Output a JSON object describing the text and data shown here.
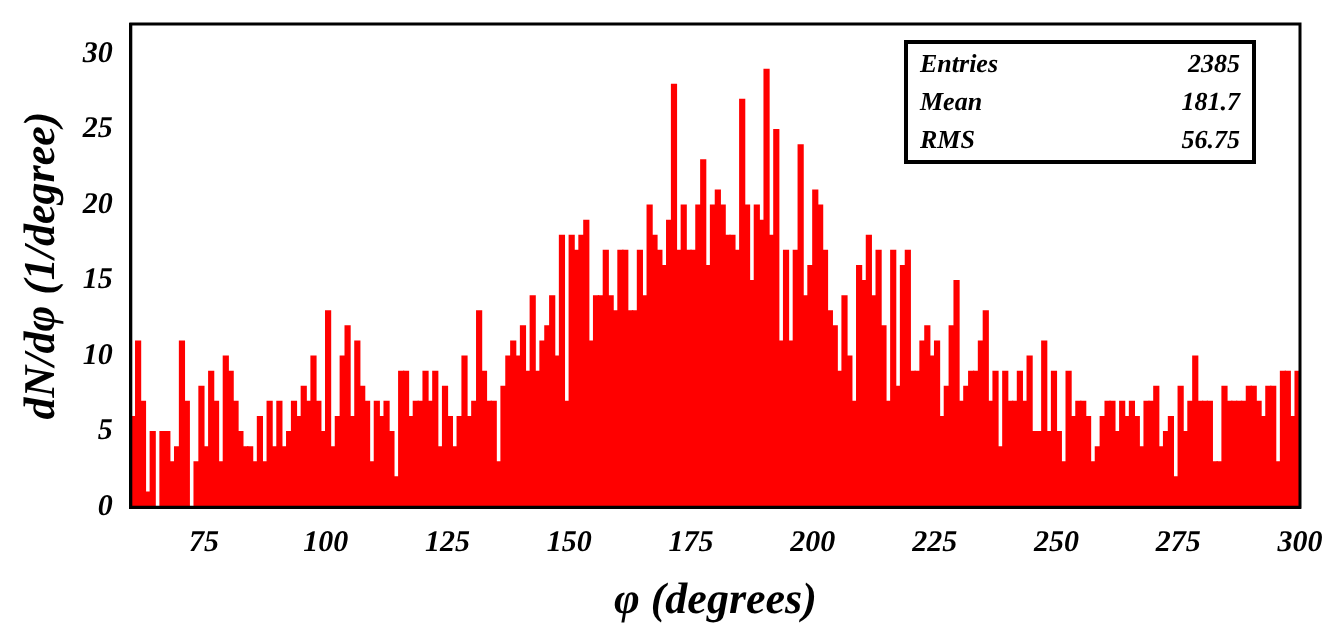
{
  "chart_data": {
    "type": "histogram",
    "xlabel": "φ (degrees)",
    "ylabel": "dN/dφ (1/degree)",
    "bins": [
      60,
      61,
      62,
      63,
      64,
      65,
      66,
      67,
      68,
      69,
      70,
      71,
      72,
      73,
      74,
      75,
      76,
      77,
      78,
      79,
      80,
      81,
      82,
      83,
      84,
      85,
      86,
      87,
      88,
      89,
      90,
      91,
      92,
      93,
      94,
      95,
      96,
      97,
      98,
      99,
      100,
      101,
      102,
      103,
      104,
      105,
      106,
      107,
      108,
      109,
      110,
      111,
      112,
      113,
      114,
      115,
      116,
      117,
      118,
      119,
      120,
      121,
      122,
      123,
      124,
      125,
      126,
      127,
      128,
      129,
      130,
      131,
      132,
      133,
      134,
      135,
      136,
      137,
      138,
      139,
      140,
      141,
      142,
      143,
      144,
      145,
      146,
      147,
      148,
      149,
      150,
      151,
      152,
      153,
      154,
      155,
      156,
      157,
      158,
      159,
      160,
      161,
      162,
      163,
      164,
      165,
      166,
      167,
      168,
      169,
      170,
      171,
      172,
      173,
      174,
      175,
      176,
      177,
      178,
      179,
      180,
      181,
      182,
      183,
      184,
      185,
      186,
      187,
      188,
      189,
      190,
      191,
      192,
      193,
      194,
      195,
      196,
      197,
      198,
      199,
      200,
      201,
      202,
      203,
      204,
      205,
      206,
      207,
      208,
      209,
      210,
      211,
      212,
      213,
      214,
      215,
      216,
      217,
      218,
      219,
      220,
      221,
      222,
      223,
      224,
      225,
      226,
      227,
      228,
      229,
      230,
      231,
      232,
      233,
      234,
      235,
      236,
      237,
      238,
      239,
      240,
      241,
      242,
      243,
      244,
      245,
      246,
      247,
      248,
      249,
      250,
      251,
      252,
      253,
      254,
      255,
      256,
      257,
      258,
      259,
      260,
      261,
      262,
      263,
      264,
      265,
      266,
      267,
      268,
      269,
      270,
      271,
      272,
      273,
      274,
      275,
      276,
      277,
      278,
      279,
      280,
      281,
      282,
      283,
      284,
      285,
      286,
      287,
      288,
      289,
      290,
      291,
      292,
      293,
      294,
      295,
      296,
      297,
      298,
      299,
      300
    ],
    "values": [
      6,
      11,
      7,
      1,
      5,
      0,
      5,
      5,
      3,
      4,
      11,
      7,
      0,
      3,
      8,
      4,
      9,
      7,
      3,
      10,
      9,
      7,
      5,
      4,
      4,
      3,
      6,
      3,
      7,
      4,
      7,
      4,
      5,
      7,
      6,
      8,
      7,
      10,
      7,
      5,
      13,
      4,
      6,
      10,
      12,
      6,
      11,
      8,
      7,
      3,
      7,
      6,
      7,
      5,
      2,
      9,
      9,
      6,
      7,
      7,
      9,
      7,
      9,
      4,
      8,
      6,
      4,
      6,
      10,
      6,
      7,
      13,
      9,
      7,
      7,
      3,
      8,
      10,
      11,
      10,
      12,
      9,
      14,
      9,
      11,
      12,
      14,
      10,
      18,
      7,
      18,
      17,
      18,
      19,
      11,
      14,
      14,
      17,
      14,
      13,
      17,
      17,
      13,
      13,
      17,
      14,
      20,
      18,
      17,
      16,
      19,
      28,
      17,
      20,
      17,
      17,
      20,
      23,
      16,
      20,
      21,
      20,
      18,
      18,
      17,
      27,
      20,
      15,
      20,
      19,
      29,
      18,
      25,
      11,
      17,
      11,
      17,
      24,
      14,
      16,
      21,
      20,
      17,
      13,
      12,
      9,
      14,
      10,
      7,
      16,
      15,
      18,
      14,
      17,
      12,
      7,
      17,
      8,
      16,
      17,
      9,
      9,
      11,
      12,
      10,
      11,
      6,
      8,
      12,
      15,
      7,
      8,
      9,
      9,
      11,
      13,
      7,
      9,
      4,
      9,
      7,
      7,
      9,
      7,
      10,
      5,
      5,
      11,
      5,
      9,
      5,
      3,
      9,
      6,
      7,
      7,
      6,
      3,
      4,
      6,
      7,
      7,
      5,
      7,
      6,
      7,
      6,
      4,
      7,
      7,
      8,
      4,
      5,
      6,
      2,
      8,
      5,
      7,
      10,
      7,
      7,
      7,
      3,
      3,
      8,
      7,
      7,
      7,
      7,
      8,
      8,
      7,
      6,
      8,
      8,
      3,
      9,
      9,
      6,
      9
    ],
    "color": "#ff0000",
    "xlim": [
      60,
      300
    ],
    "xticks": [
      75,
      100,
      125,
      150,
      175,
      200,
      225,
      250,
      275,
      300
    ],
    "ylim": [
      0,
      32
    ],
    "yticks": [
      0,
      5,
      10,
      15,
      20,
      25,
      30
    ],
    "annotations": [
      "Entries",
      "2385",
      "Mean",
      "181.7",
      "RMS",
      "56.75"
    ]
  }
}
